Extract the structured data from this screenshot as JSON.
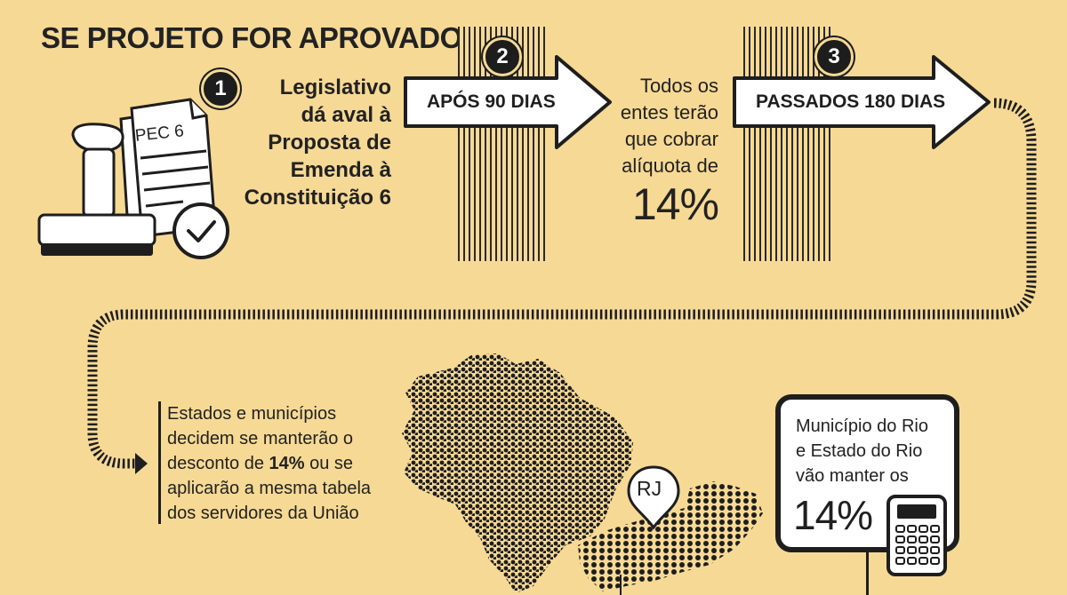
{
  "title": "SE PROJETO FOR APROVADO",
  "steps": [
    {
      "number": "1",
      "document_label": "PEC 6",
      "text_lines": [
        "Legislativo",
        "dá aval à",
        "Proposta de",
        "Emenda à",
        "Constituição 6"
      ]
    },
    {
      "number": "2",
      "arrow_label": "APÓS 90 DIAS",
      "text_lines": [
        "Todos os",
        "entes terão",
        "que cobrar",
        "alíquota de"
      ],
      "highlight": "14%"
    },
    {
      "number": "3",
      "arrow_label": "PASSADOS 180 DIAS"
    }
  ],
  "decision": {
    "line1": "Estados e municípios",
    "line2": "decidem se manterão o",
    "line3_prefix": "desconto de ",
    "line3_bold": "14%",
    "line3_suffix": " ou se",
    "line4": "aplicarão a mesma tabela",
    "line5": "dos servidores da União"
  },
  "map": {
    "pin_label": "RJ"
  },
  "rio": {
    "text_lines": [
      "Município do Rio",
      "e Estado do Rio",
      "vão manter os"
    ],
    "highlight": "14%"
  },
  "colors": {
    "background": "#f5d994",
    "ink": "#1f1f1f",
    "arrow_fill": "#ffffff"
  }
}
